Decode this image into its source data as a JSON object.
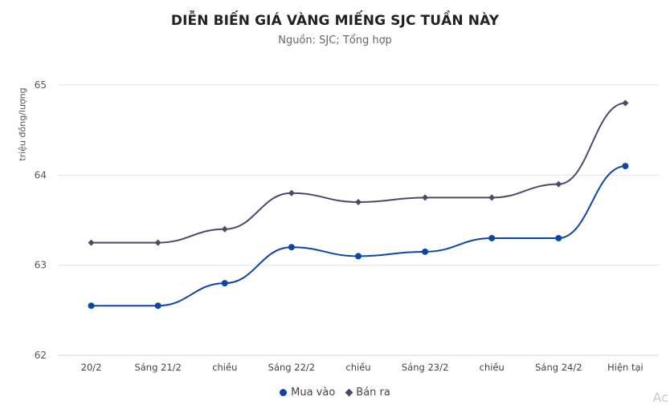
{
  "chart_data": {
    "type": "line",
    "title": "DIỄN BIẾN GIÁ VÀNG MIẾNG SJC TUẦN NÀY",
    "subtitle": "Nguồn: SJC; Tổng hợp",
    "xlabel": "",
    "ylabel": "triệu đồng/lượng",
    "ylim": [
      62,
      65
    ],
    "yticks": [
      62,
      63,
      64,
      65
    ],
    "grid": true,
    "legend_position": "bottom",
    "categories": [
      "20/2",
      "Sáng 21/2",
      "chiều",
      "Sáng 22/2",
      "chiều",
      "Sáng 23/2",
      "chiều",
      "Sáng 24/2",
      "Hiện tại"
    ],
    "series": [
      {
        "name": "Mua vào",
        "color": "#0d47a1",
        "marker": "circle",
        "values": [
          62.55,
          62.55,
          62.8,
          63.2,
          63.1,
          63.15,
          63.3,
          63.3,
          64.1
        ]
      },
      {
        "name": "Bán ra",
        "color": "#4a4a6a",
        "marker": "diamond",
        "values": [
          63.25,
          63.25,
          63.4,
          63.8,
          63.7,
          63.75,
          63.75,
          63.9,
          64.8
        ]
      }
    ]
  },
  "watermark": "Ac"
}
